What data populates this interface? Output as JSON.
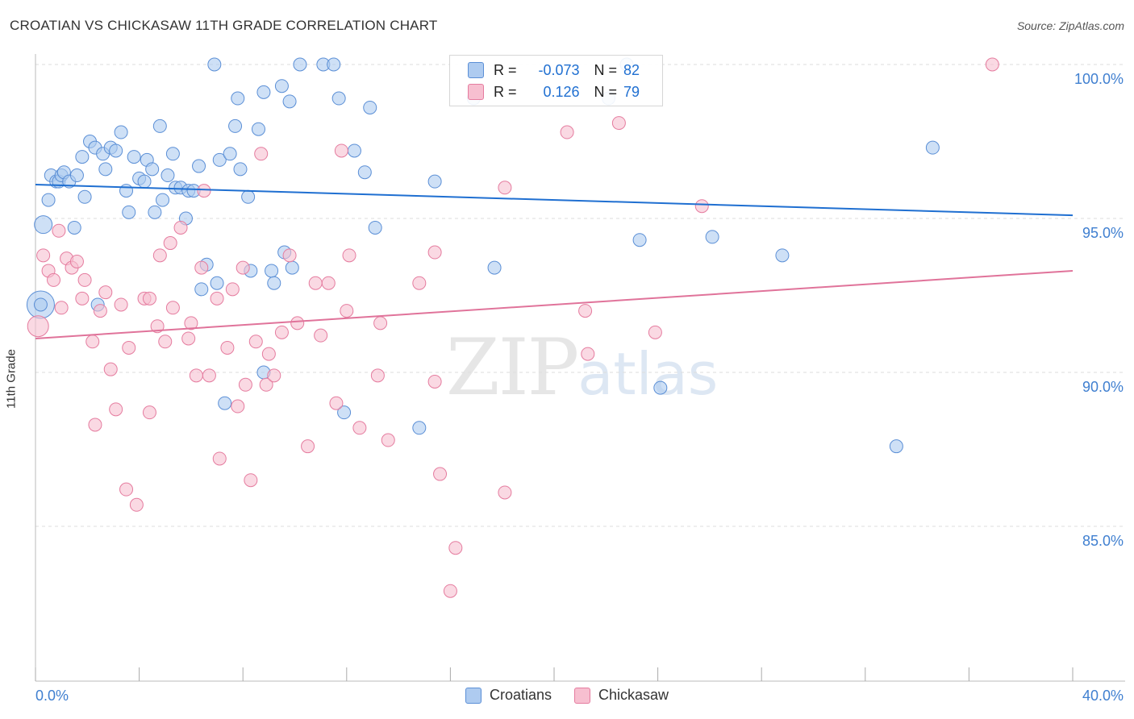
{
  "title": "CROATIAN VS CHICKASAW 11TH GRADE CORRELATION CHART",
  "source": "Source: ZipAtlas.com",
  "watermark": {
    "zip": "ZIP",
    "atlas": "atlas"
  },
  "legend": {
    "rows": [
      {
        "r_label": "R =",
        "r_value": "-0.073",
        "n_label": "N =",
        "n_value": "82"
      },
      {
        "r_label": "R =",
        "r_value": "0.126",
        "n_label": "N =",
        "n_value": "79"
      }
    ]
  },
  "colors": {
    "croatians_fill": "#aecbf0",
    "croatians_stroke": "#5b8fd6",
    "croatians_line": "#1f6fd1",
    "chickasaw_fill": "#f7bfd0",
    "chickasaw_stroke": "#e57c9f",
    "chickasaw_line": "#e0739a",
    "tick_label": "#3f7fd0",
    "grid": "#dddddd"
  },
  "chart_data": {
    "type": "scatter",
    "title": "CROATIAN VS CHICKASAW 11TH GRADE CORRELATION CHART",
    "xlabel": "",
    "ylabel": "11th Grade",
    "xlim": [
      0,
      40
    ],
    "ylim": [
      80.5,
      100.8
    ],
    "x_tick_labels": [
      "0.0%",
      "40.0%"
    ],
    "y_ticks": [
      85,
      90,
      95,
      100
    ],
    "y_tick_labels": [
      "85.0%",
      "90.0%",
      "95.0%",
      "100.0%"
    ],
    "grid": true,
    "legend_position": "bottom-center",
    "series": [
      {
        "name": "Croatians",
        "r": -0.073,
        "n": 82,
        "trend": [
          [
            0,
            96.1
          ],
          [
            40,
            95.1
          ]
        ],
        "points": [
          [
            0.2,
            92.2
          ],
          [
            0.3,
            94.8
          ],
          [
            0.5,
            95.6
          ],
          [
            0.6,
            96.4
          ],
          [
            0.8,
            96.2
          ],
          [
            0.9,
            96.2
          ],
          [
            1.0,
            96.4
          ],
          [
            1.1,
            96.5
          ],
          [
            1.3,
            96.2
          ],
          [
            1.5,
            94.7
          ],
          [
            1.6,
            96.4
          ],
          [
            1.8,
            97.0
          ],
          [
            1.9,
            95.7
          ],
          [
            2.1,
            97.5
          ],
          [
            2.3,
            97.3
          ],
          [
            2.4,
            92.2
          ],
          [
            2.6,
            97.1
          ],
          [
            2.7,
            96.6
          ],
          [
            2.9,
            97.3
          ],
          [
            3.1,
            97.2
          ],
          [
            3.3,
            97.8
          ],
          [
            3.5,
            95.9
          ],
          [
            3.6,
            95.2
          ],
          [
            3.8,
            97.0
          ],
          [
            4.0,
            96.3
          ],
          [
            4.2,
            96.2
          ],
          [
            4.3,
            96.9
          ],
          [
            4.5,
            96.6
          ],
          [
            4.6,
            95.2
          ],
          [
            4.8,
            98.0
          ],
          [
            4.9,
            95.6
          ],
          [
            5.1,
            96.4
          ],
          [
            5.3,
            97.1
          ],
          [
            5.4,
            96.0
          ],
          [
            5.6,
            96.0
          ],
          [
            5.8,
            95.0
          ],
          [
            5.9,
            95.9
          ],
          [
            6.1,
            95.9
          ],
          [
            6.3,
            96.7
          ],
          [
            6.4,
            92.7
          ],
          [
            6.6,
            93.5
          ],
          [
            6.9,
            100.0
          ],
          [
            7.0,
            92.9
          ],
          [
            7.1,
            96.9
          ],
          [
            7.3,
            89.0
          ],
          [
            7.5,
            97.1
          ],
          [
            7.7,
            98.0
          ],
          [
            7.8,
            98.9
          ],
          [
            7.9,
            96.6
          ],
          [
            8.2,
            95.7
          ],
          [
            8.3,
            93.3
          ],
          [
            8.6,
            97.9
          ],
          [
            8.8,
            99.1
          ],
          [
            8.8,
            90.0
          ],
          [
            9.1,
            93.3
          ],
          [
            9.2,
            92.9
          ],
          [
            9.5,
            99.3
          ],
          [
            9.6,
            93.9
          ],
          [
            9.8,
            98.8
          ],
          [
            9.9,
            93.4
          ],
          [
            10.2,
            100.0
          ],
          [
            11.1,
            100.0
          ],
          [
            11.5,
            100.0
          ],
          [
            11.7,
            98.9
          ],
          [
            11.9,
            88.7
          ],
          [
            12.3,
            97.2
          ],
          [
            12.7,
            96.5
          ],
          [
            12.9,
            98.6
          ],
          [
            13.1,
            94.7
          ],
          [
            14.8,
            88.2
          ],
          [
            15.4,
            96.2
          ],
          [
            16.9,
            98.9
          ],
          [
            17.7,
            93.4
          ],
          [
            22.1,
            98.9
          ],
          [
            23.3,
            94.3
          ],
          [
            24.1,
            89.5
          ],
          [
            26.1,
            94.4
          ],
          [
            28.8,
            93.8
          ],
          [
            33.2,
            87.6
          ],
          [
            34.6,
            97.3
          ],
          [
            22.8,
            100.0
          ],
          [
            0.2,
            92.2
          ]
        ]
      },
      {
        "name": "Chickasaw",
        "r": 0.126,
        "n": 79,
        "trend": [
          [
            0,
            91.1
          ],
          [
            40,
            93.3
          ]
        ],
        "points": [
          [
            0.1,
            91.5
          ],
          [
            0.3,
            93.8
          ],
          [
            0.5,
            93.3
          ],
          [
            0.7,
            93.0
          ],
          [
            0.9,
            94.6
          ],
          [
            1.0,
            92.1
          ],
          [
            1.2,
            93.7
          ],
          [
            1.4,
            93.4
          ],
          [
            1.6,
            93.6
          ],
          [
            1.8,
            92.4
          ],
          [
            1.9,
            93.0
          ],
          [
            2.2,
            91.0
          ],
          [
            2.3,
            88.3
          ],
          [
            2.5,
            92.0
          ],
          [
            2.7,
            92.6
          ],
          [
            2.9,
            90.1
          ],
          [
            3.1,
            88.8
          ],
          [
            3.3,
            92.2
          ],
          [
            3.5,
            86.2
          ],
          [
            3.6,
            90.8
          ],
          [
            3.9,
            85.7
          ],
          [
            4.2,
            92.4
          ],
          [
            4.4,
            92.4
          ],
          [
            4.4,
            88.7
          ],
          [
            4.7,
            91.5
          ],
          [
            4.8,
            93.8
          ],
          [
            5.0,
            91.0
          ],
          [
            5.2,
            94.2
          ],
          [
            5.3,
            92.1
          ],
          [
            5.6,
            94.7
          ],
          [
            5.9,
            91.1
          ],
          [
            6.0,
            91.6
          ],
          [
            6.2,
            89.9
          ],
          [
            6.4,
            93.4
          ],
          [
            6.5,
            95.9
          ],
          [
            6.7,
            89.9
          ],
          [
            7.0,
            92.4
          ],
          [
            7.1,
            87.2
          ],
          [
            7.4,
            90.8
          ],
          [
            7.6,
            92.7
          ],
          [
            7.8,
            88.9
          ],
          [
            8.0,
            93.4
          ],
          [
            8.1,
            89.6
          ],
          [
            8.3,
            86.5
          ],
          [
            8.5,
            91.0
          ],
          [
            8.7,
            97.1
          ],
          [
            8.9,
            89.6
          ],
          [
            9.0,
            90.6
          ],
          [
            9.2,
            89.9
          ],
          [
            9.5,
            91.3
          ],
          [
            9.8,
            93.8
          ],
          [
            10.1,
            91.6
          ],
          [
            10.5,
            87.6
          ],
          [
            10.8,
            92.9
          ],
          [
            11.0,
            91.2
          ],
          [
            11.3,
            92.9
          ],
          [
            11.6,
            89.0
          ],
          [
            11.8,
            97.2
          ],
          [
            12.0,
            92.0
          ],
          [
            12.1,
            93.8
          ],
          [
            12.5,
            88.2
          ],
          [
            13.2,
            89.9
          ],
          [
            13.3,
            91.6
          ],
          [
            13.6,
            87.8
          ],
          [
            14.8,
            92.9
          ],
          [
            15.4,
            93.9
          ],
          [
            15.4,
            89.7
          ],
          [
            15.6,
            86.7
          ],
          [
            16.2,
            84.3
          ],
          [
            16.0,
            82.9
          ],
          [
            18.1,
            86.1
          ],
          [
            18.1,
            96.0
          ],
          [
            20.5,
            97.8
          ],
          [
            21.2,
            92.0
          ],
          [
            21.3,
            90.6
          ],
          [
            22.5,
            98.1
          ],
          [
            23.9,
            91.3
          ],
          [
            25.7,
            95.4
          ],
          [
            36.9,
            100.0
          ]
        ]
      }
    ]
  },
  "bottom_legend": [
    "Croatians",
    "Chickasaw"
  ]
}
